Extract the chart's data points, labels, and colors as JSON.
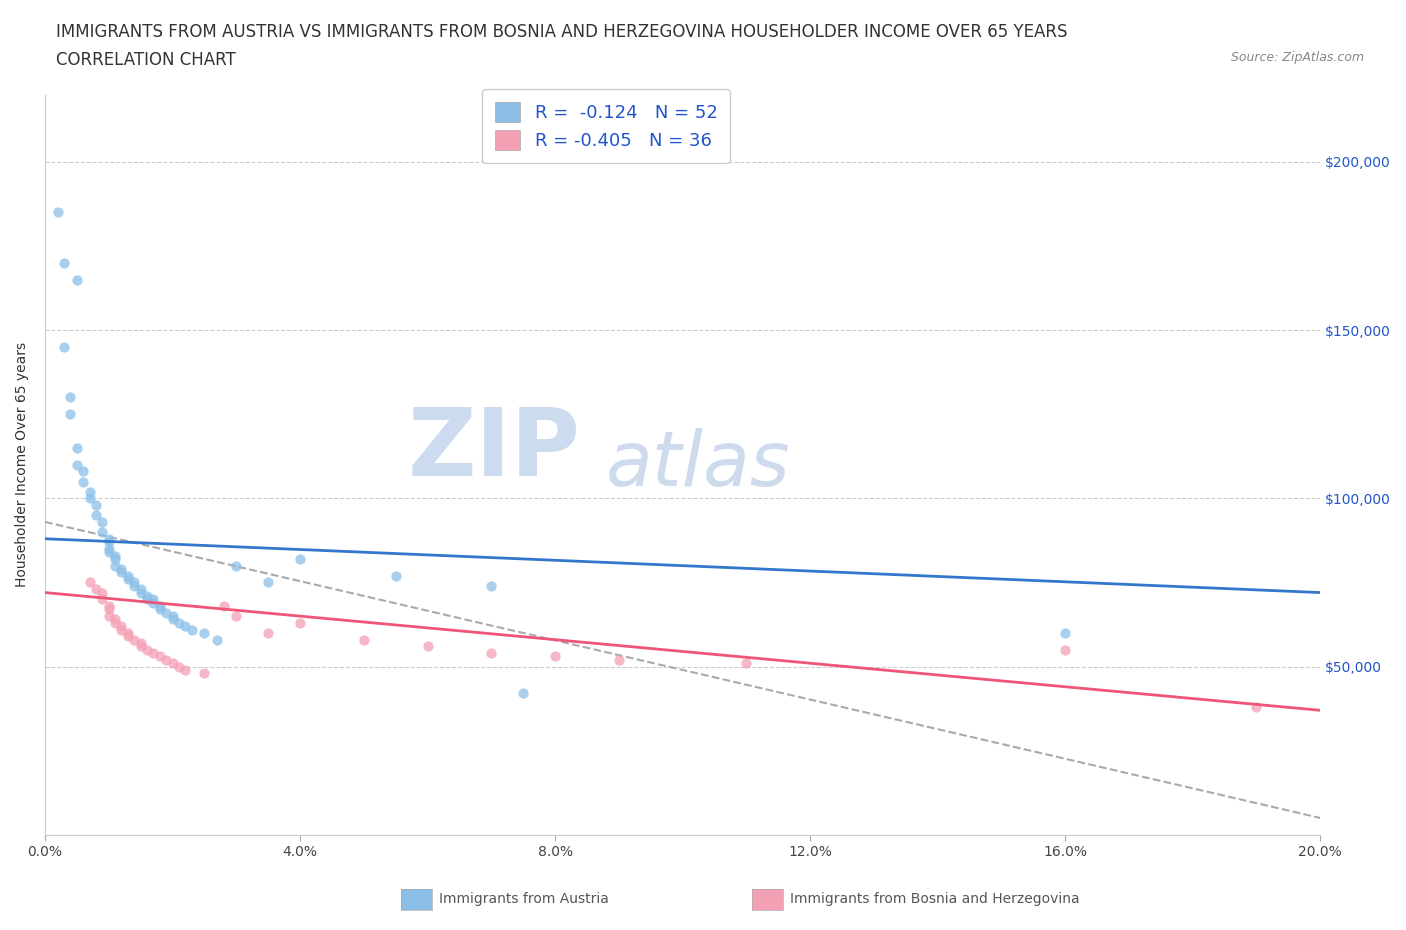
{
  "title_line1": "IMMIGRANTS FROM AUSTRIA VS IMMIGRANTS FROM BOSNIA AND HERZEGOVINA HOUSEHOLDER INCOME OVER 65 YEARS",
  "title_line2": "CORRELATION CHART",
  "source": "Source: ZipAtlas.com",
  "ylabel": "Householder Income Over 65 years",
  "xlim": [
    0.0,
    0.2
  ],
  "ylim": [
    0,
    220000
  ],
  "xticks": [
    0.0,
    0.04,
    0.08,
    0.12,
    0.16,
    0.2
  ],
  "xtick_labels": [
    "0.0%",
    "4.0%",
    "8.0%",
    "12.0%",
    "16.0%",
    "20.0%"
  ],
  "yticks": [
    0,
    50000,
    100000,
    150000,
    200000
  ],
  "ytick_labels": [
    "",
    "$50,000",
    "$100,000",
    "$150,000",
    "$200,000"
  ],
  "legend_r1": "R =  -0.124   N = 52",
  "legend_r2": "R = -0.405   N = 36",
  "color_austria": "#8BBFE8",
  "color_bosnia": "#F4A0B4",
  "color_austria_line": "#3377CC",
  "color_bosnia_line": "#EE5577",
  "color_dashed": "#AAAAAA",
  "watermark_zip": "ZIP",
  "watermark_atlas": "atlas",
  "austria_x": [
    0.002,
    0.003,
    0.005,
    0.003,
    0.004,
    0.004,
    0.005,
    0.005,
    0.006,
    0.006,
    0.007,
    0.007,
    0.008,
    0.008,
    0.009,
    0.009,
    0.01,
    0.01,
    0.01,
    0.01,
    0.011,
    0.011,
    0.011,
    0.012,
    0.012,
    0.013,
    0.013,
    0.014,
    0.014,
    0.015,
    0.015,
    0.016,
    0.016,
    0.017,
    0.017,
    0.018,
    0.018,
    0.019,
    0.02,
    0.02,
    0.021,
    0.022,
    0.023,
    0.025,
    0.027,
    0.03,
    0.035,
    0.04,
    0.055,
    0.07,
    0.16,
    0.075
  ],
  "austria_y": [
    185000,
    170000,
    165000,
    145000,
    130000,
    125000,
    115000,
    110000,
    105000,
    108000,
    100000,
    102000,
    98000,
    95000,
    93000,
    90000,
    88000,
    87000,
    85000,
    84000,
    83000,
    82000,
    80000,
    79000,
    78000,
    77000,
    76000,
    75000,
    74000,
    73000,
    72000,
    71000,
    70000,
    70000,
    69000,
    68000,
    67000,
    66000,
    65000,
    64000,
    63000,
    62000,
    61000,
    60000,
    58000,
    80000,
    75000,
    82000,
    77000,
    74000,
    60000,
    42000
  ],
  "bosnia_x": [
    0.007,
    0.008,
    0.009,
    0.009,
    0.01,
    0.01,
    0.01,
    0.011,
    0.011,
    0.012,
    0.012,
    0.013,
    0.013,
    0.014,
    0.015,
    0.015,
    0.016,
    0.017,
    0.018,
    0.019,
    0.02,
    0.021,
    0.022,
    0.025,
    0.028,
    0.03,
    0.035,
    0.04,
    0.05,
    0.06,
    0.07,
    0.08,
    0.09,
    0.11,
    0.16,
    0.19
  ],
  "bosnia_y": [
    75000,
    73000,
    72000,
    70000,
    68000,
    67000,
    65000,
    64000,
    63000,
    62000,
    61000,
    60000,
    59000,
    58000,
    57000,
    56000,
    55000,
    54000,
    53000,
    52000,
    51000,
    50000,
    49000,
    48000,
    68000,
    65000,
    60000,
    63000,
    58000,
    56000,
    54000,
    53000,
    52000,
    51000,
    55000,
    38000
  ],
  "austria_trend_x": [
    0.0,
    0.2
  ],
  "austria_trend_y": [
    88000,
    72000
  ],
  "bosnia_trend_x": [
    0.0,
    0.2
  ],
  "bosnia_trend_y": [
    72000,
    37000
  ],
  "dashed_trend_x": [
    0.0,
    0.2
  ],
  "dashed_trend_y": [
    93000,
    5000
  ],
  "background_color": "#FFFFFF",
  "grid_color_h": "#CCCCCC",
  "title_fontsize": 12,
  "axis_fontsize": 10,
  "tick_fontsize": 10,
  "legend_label1": "Immigrants from Austria",
  "legend_label2": "Immigrants from Bosnia and Herzegovina"
}
